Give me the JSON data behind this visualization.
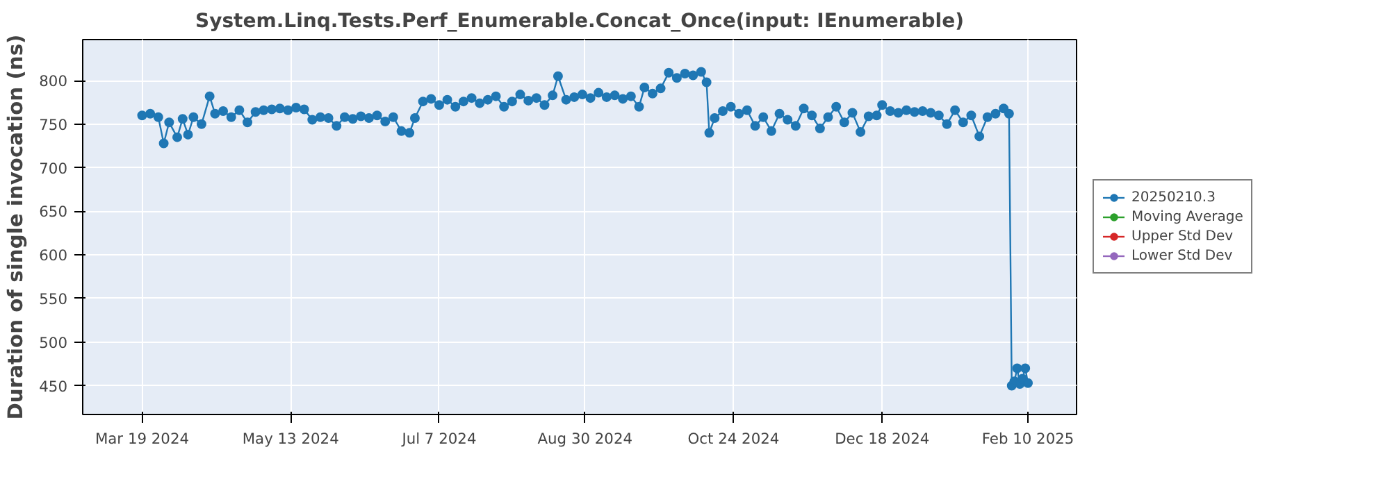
{
  "chart_data": {
    "type": "line",
    "title": "System.Linq.Tests.Perf_Enumerable.Concat_Once(input: IEnumerable)",
    "ylabel": "Duration of single invocation (ns)",
    "xlim": [
      "2024-02-26",
      "2025-02-28"
    ],
    "ylim": [
      417,
      847
    ],
    "yticks": [
      450,
      500,
      550,
      600,
      650,
      700,
      750,
      800
    ],
    "xticks": [
      {
        "value": "2024-03-19",
        "label": "Mar 19 2024"
      },
      {
        "value": "2024-05-13",
        "label": "May 13 2024"
      },
      {
        "value": "2024-07-07",
        "label": "Jul 7 2024"
      },
      {
        "value": "2024-08-30",
        "label": "Aug 30 2024"
      },
      {
        "value": "2024-10-24",
        "label": "Oct 24 2024"
      },
      {
        "value": "2024-12-18",
        "label": "Dec 18 2024"
      },
      {
        "value": "2025-02-10",
        "label": "Feb 10 2025"
      }
    ],
    "grid": true,
    "legend": "right",
    "marker": "circle",
    "series": [
      {
        "name": "20250210.3",
        "color": "#1f77b4",
        "x": [
          "2024-03-19",
          "2024-03-22",
          "2024-03-25",
          "2024-03-27",
          "2024-03-29",
          "2024-04-01",
          "2024-04-03",
          "2024-04-05",
          "2024-04-07",
          "2024-04-10",
          "2024-04-13",
          "2024-04-15",
          "2024-04-18",
          "2024-04-21",
          "2024-04-24",
          "2024-04-27",
          "2024-04-30",
          "2024-05-03",
          "2024-05-06",
          "2024-05-09",
          "2024-05-12",
          "2024-05-15",
          "2024-05-18",
          "2024-05-21",
          "2024-05-24",
          "2024-05-27",
          "2024-05-30",
          "2024-06-02",
          "2024-06-05",
          "2024-06-08",
          "2024-06-11",
          "2024-06-14",
          "2024-06-17",
          "2024-06-20",
          "2024-06-23",
          "2024-06-26",
          "2024-06-28",
          "2024-07-01",
          "2024-07-04",
          "2024-07-07",
          "2024-07-10",
          "2024-07-13",
          "2024-07-16",
          "2024-07-19",
          "2024-07-22",
          "2024-07-25",
          "2024-07-28",
          "2024-07-31",
          "2024-08-03",
          "2024-08-06",
          "2024-08-09",
          "2024-08-12",
          "2024-08-15",
          "2024-08-18",
          "2024-08-20",
          "2024-08-23",
          "2024-08-26",
          "2024-08-29",
          "2024-09-01",
          "2024-09-04",
          "2024-09-07",
          "2024-09-10",
          "2024-09-13",
          "2024-09-16",
          "2024-09-19",
          "2024-09-21",
          "2024-09-24",
          "2024-09-27",
          "2024-09-30",
          "2024-10-03",
          "2024-10-06",
          "2024-10-09",
          "2024-10-12",
          "2024-10-14",
          "2024-10-15",
          "2024-10-17",
          "2024-10-20",
          "2024-10-23",
          "2024-10-26",
          "2024-10-29",
          "2024-11-01",
          "2024-11-04",
          "2024-11-07",
          "2024-11-10",
          "2024-11-13",
          "2024-11-16",
          "2024-11-19",
          "2024-11-22",
          "2024-11-25",
          "2024-11-28",
          "2024-12-01",
          "2024-12-04",
          "2024-12-07",
          "2024-12-10",
          "2024-12-13",
          "2024-12-16",
          "2024-12-18",
          "2024-12-21",
          "2024-12-24",
          "2024-12-27",
          "2024-12-30",
          "2025-01-02",
          "2025-01-05",
          "2025-01-08",
          "2025-01-11",
          "2025-01-14",
          "2025-01-17",
          "2025-01-20",
          "2025-01-23",
          "2025-01-26",
          "2025-01-29",
          "2025-02-01",
          "2025-02-03",
          "2025-02-04",
          "2025-02-05",
          "2025-02-06",
          "2025-02-07",
          "2025-02-08",
          "2025-02-09",
          "2025-02-10"
        ],
        "values": [
          760,
          762,
          758,
          728,
          752,
          735,
          756,
          738,
          758,
          750,
          782,
          762,
          765,
          758,
          766,
          752,
          764,
          766,
          767,
          768,
          766,
          769,
          767,
          755,
          758,
          757,
          748,
          758,
          756,
          759,
          757,
          760,
          753,
          758,
          742,
          740,
          757,
          776,
          779,
          772,
          778,
          770,
          776,
          780,
          774,
          778,
          782,
          770,
          776,
          784,
          777,
          780,
          772,
          783,
          805,
          778,
          781,
          784,
          780,
          786,
          781,
          783,
          779,
          782,
          770,
          792,
          785,
          791,
          809,
          803,
          808,
          806,
          810,
          798,
          740,
          757,
          765,
          770,
          762,
          766,
          748,
          758,
          742,
          762,
          755,
          748,
          768,
          760,
          745,
          758,
          770,
          752,
          763,
          741,
          759,
          760,
          772,
          765,
          763,
          766,
          764,
          765,
          763,
          760,
          750,
          766,
          752,
          760,
          736,
          758,
          762,
          768,
          762,
          450,
          455,
          470,
          452,
          458,
          470,
          453
        ]
      },
      {
        "name": "Moving Average",
        "color": "#2ca02c"
      },
      {
        "name": "Upper Std Dev",
        "color": "#d62728"
      },
      {
        "name": "Lower Std Dev",
        "color": "#9467bd"
      }
    ]
  }
}
